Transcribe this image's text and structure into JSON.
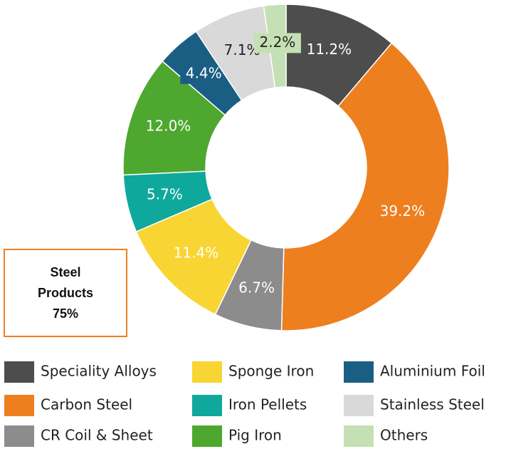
{
  "chart_data": {
    "type": "donut",
    "categories": [
      "Speciality Alloys",
      "Carbon Steel",
      "CR Coil & Sheet",
      "Sponge Iron",
      "Iron Pellets",
      "Pig Iron",
      "Aluminium Foil",
      "Stainless Steel",
      "Others"
    ],
    "values": [
      11.2,
      39.2,
      6.7,
      11.4,
      5.7,
      12.0,
      4.4,
      7.1,
      2.2
    ],
    "value_labels": [
      "11.2%",
      "39.2%",
      "6.7%",
      "11.4%",
      "5.7%",
      "12.0%",
      "4.4%",
      "7.1%",
      "2.2%"
    ],
    "colors": [
      "#4d4d4d",
      "#ee7f1f",
      "#8c8c8c",
      "#f8d532",
      "#0fa89c",
      "#4ea72e",
      "#1b5e84",
      "#d9d9d9",
      "#c5e0b4"
    ],
    "annotation": {
      "lines": [
        "Steel",
        "Products",
        "75%"
      ]
    }
  }
}
